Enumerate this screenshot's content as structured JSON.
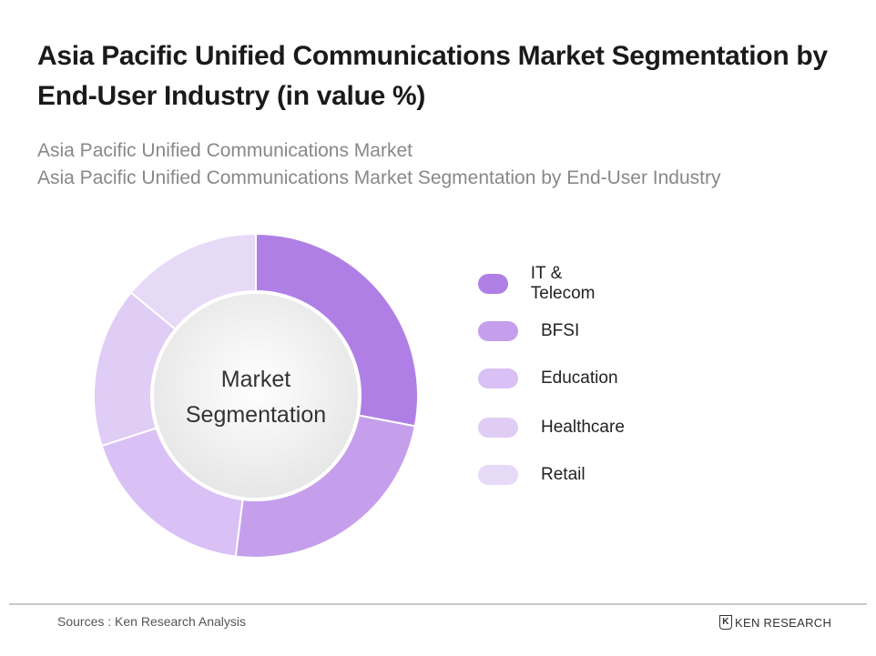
{
  "title": "Asia Pacific Unified Communications Market Segmentation by End-User Industry (in value %)",
  "subtitle_1": "Asia Pacific Unified Communications Market",
  "subtitle_2": "Asia Pacific Unified Communications Market Segmentation by End-User Industry",
  "source": "Sources : Ken Research Analysis",
  "logo_text": "KEN RESEARCH",
  "chart_data": {
    "type": "pie",
    "variant": "donut",
    "center_label_1": "Market",
    "center_label_2": "Segmentation",
    "legend_position": "right",
    "categories": [
      "IT & Telecom",
      "BFSI",
      "Education",
      "Healthcare",
      "Retail"
    ],
    "values": [
      28,
      24,
      18,
      16,
      14
    ],
    "colors": [
      "#b07fe6",
      "#c59fec",
      "#d9c0f5",
      "#e0cdf6",
      "#e7daf7"
    ]
  }
}
